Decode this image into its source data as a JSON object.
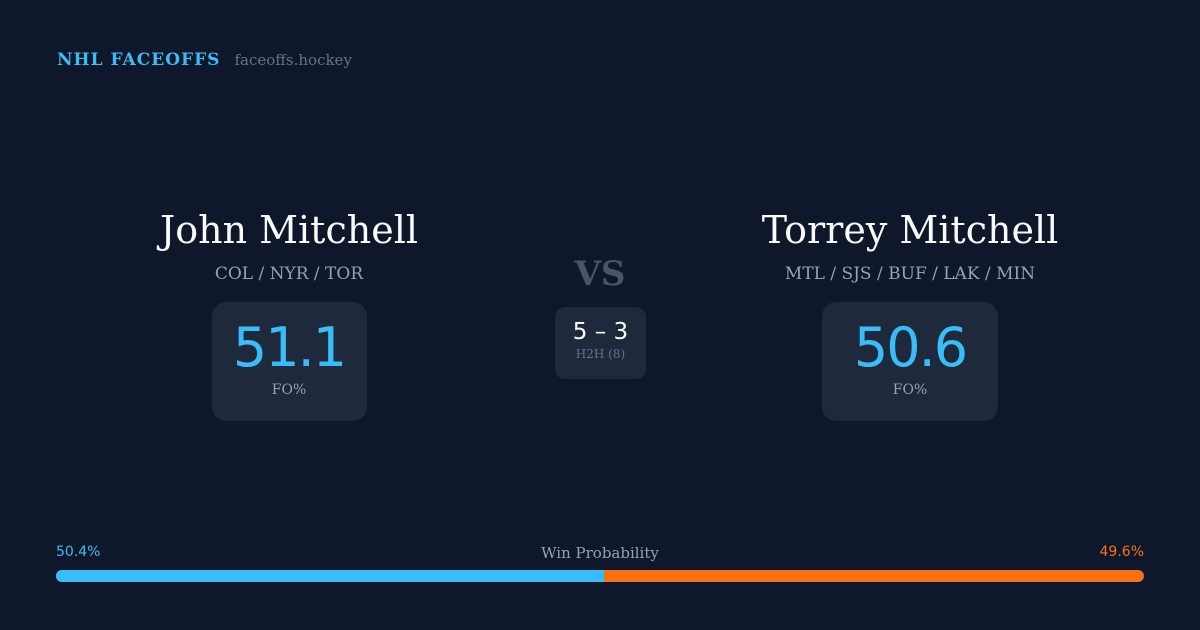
{
  "brand": {
    "title": "NHL FACEOFFS",
    "url": "faceoffs.hockey"
  },
  "player1": {
    "name": "John Mitchell",
    "teams": "COL / NYR / TOR",
    "fo_pct": "51.1",
    "fo_label": "FO%"
  },
  "player2": {
    "name": "Torrey Mitchell",
    "teams": "MTL / SJS / BUF / LAK / MIN",
    "fo_pct": "50.6",
    "fo_label": "FO%"
  },
  "vs": "VS",
  "h2h": {
    "score": "5 – 3",
    "label": "H2H (8)"
  },
  "win_probability": {
    "label": "Win Probability",
    "p1": "50.4%",
    "p2": "49.6%",
    "p1_value": 50.4,
    "colors": {
      "p1": "#38bdf8",
      "p2": "#f97316"
    }
  }
}
